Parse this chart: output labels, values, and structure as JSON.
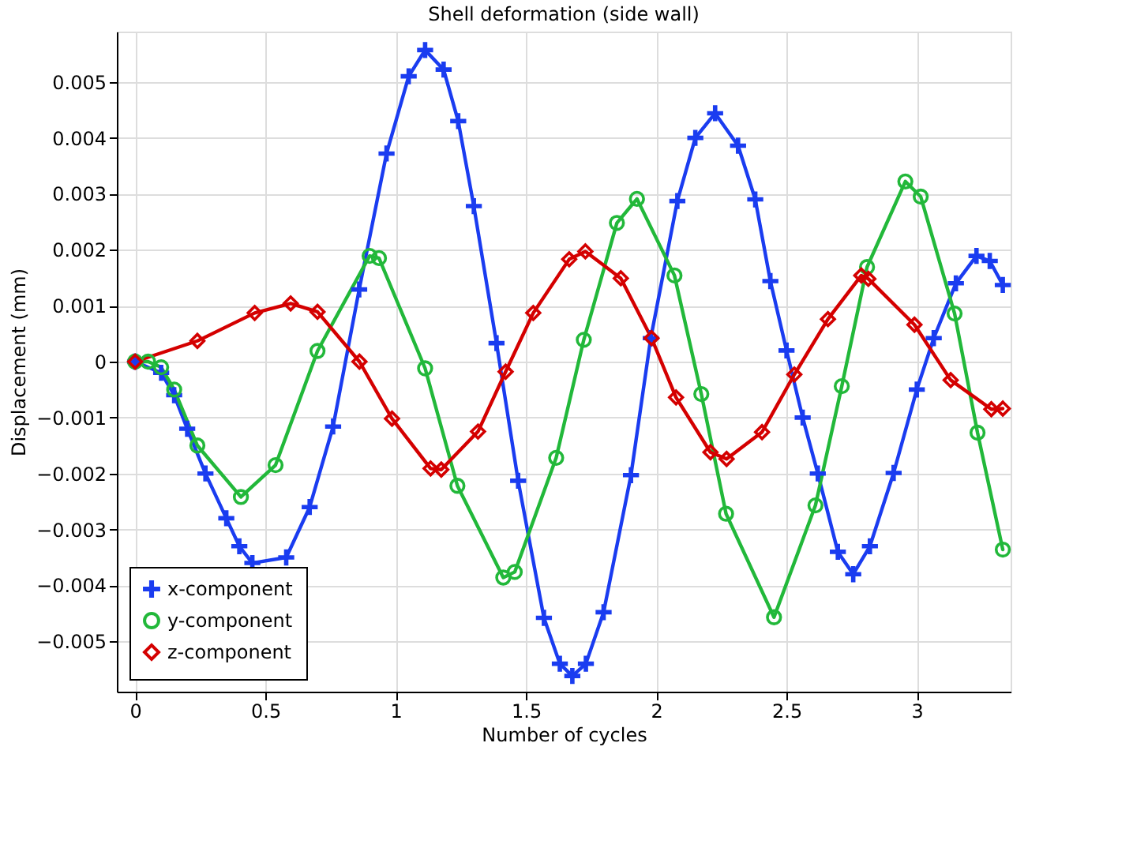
{
  "chart_data": {
    "type": "line",
    "title": "Shell deformation (side wall)",
    "xlabel": "Number of cycles",
    "ylabel": "Displacement (mm)",
    "xlim": [
      -0.07,
      3.36
    ],
    "xticks": [
      0,
      0.5,
      1,
      1.5,
      2,
      2.5,
      3
    ],
    "ylim": [
      -0.0059,
      0.0059
    ],
    "yticks": [
      -0.005,
      -0.004,
      -0.003,
      -0.002,
      -0.001,
      0,
      0.001,
      0.002,
      0.003,
      0.004,
      0.005
    ],
    "grid": true,
    "legend": "bottom left",
    "line_style": "solid",
    "series": [
      {
        "name": "x-component",
        "color": "#1a3cf0",
        "marker": "cross",
        "x": [
          0,
          0.1,
          0.15,
          0.2,
          0.27,
          0.35,
          0.4,
          0.45,
          0.58,
          0.67,
          0.76,
          0.86,
          0.965,
          1.05,
          1.113,
          1.184,
          1.24,
          1.3,
          1.387,
          1.47,
          1.569,
          1.63,
          1.678,
          1.73,
          1.798,
          1.903,
          1.979,
          2.081,
          2.15,
          2.226,
          2.314,
          2.38,
          2.438,
          2.5,
          2.562,
          2.62,
          2.697,
          2.756,
          2.82,
          2.911,
          3.0,
          3.065,
          3.15,
          3.229,
          3.28,
          3.33
        ],
        "values": [
          0,
          -0.0002,
          -0.0006,
          -0.0012,
          -0.002,
          -0.0028,
          -0.0033,
          -0.0036,
          -0.0035,
          -0.0026,
          -0.00116,
          0.00129,
          0.00372,
          0.0051,
          0.00557,
          0.00522,
          0.0043,
          0.00278,
          0.00033,
          -0.00213,
          -0.00458,
          -0.0054,
          -0.00562,
          -0.0054,
          -0.00448,
          -0.00203,
          0.00042,
          0.00287,
          0.004,
          0.00444,
          0.00386,
          0.0029,
          0.00144,
          0.0002,
          -0.001,
          -0.002,
          -0.0034,
          -0.0038,
          -0.0033,
          -0.00199,
          -0.0005,
          0.00042,
          0.0014,
          0.00189,
          0.0018,
          0.00137
        ]
      },
      {
        "name": "y-component",
        "color": "#22b83a",
        "marker": "circle",
        "x": [
          0,
          0.05,
          0.1,
          0.15,
          0.239,
          0.406,
          0.539,
          0.7,
          0.9,
          0.936,
          1.113,
          1.237,
          1.413,
          1.457,
          1.616,
          1.722,
          1.849,
          1.926,
          2.07,
          2.173,
          2.268,
          2.452,
          2.611,
          2.712,
          2.809,
          2.956,
          3.015,
          3.145,
          3.233,
          3.33
        ],
        "values": [
          0,
          0.0,
          -0.0001,
          -0.0005,
          -0.0015,
          -0.00242,
          -0.00185,
          0.00019,
          0.00189,
          0.00185,
          -0.00012,
          -0.00222,
          -0.00386,
          -0.00376,
          -0.00172,
          0.00039,
          0.00248,
          0.00291,
          0.00154,
          -0.00058,
          -0.00272,
          -0.00457,
          -0.00257,
          -0.00044,
          0.00169,
          0.00322,
          0.00295,
          0.00086,
          -0.00127,
          -0.00336
        ]
      },
      {
        "name": "z-component",
        "color": "#d40000",
        "marker": "diamond",
        "x": [
          0,
          0.239,
          0.459,
          0.597,
          0.7,
          0.861,
          0.986,
          1.134,
          1.175,
          1.316,
          1.422,
          1.528,
          1.666,
          1.728,
          1.864,
          1.982,
          2.076,
          2.208,
          2.27,
          2.406,
          2.53,
          2.659,
          2.787,
          2.814,
          2.991,
          3.13,
          3.286,
          3.33
        ],
        "values": [
          0,
          0.00037,
          0.00087,
          0.00104,
          0.00089,
          0.0,
          -0.00102,
          -0.00191,
          -0.00193,
          -0.00125,
          -0.00018,
          0.00087,
          0.00183,
          0.00197,
          0.00149,
          0.00042,
          -0.00064,
          -0.00162,
          -0.00174,
          -0.00126,
          -0.00023,
          0.00076,
          0.00154,
          0.00148,
          0.00066,
          -0.00033,
          -0.00085,
          -0.00084
        ]
      }
    ]
  }
}
